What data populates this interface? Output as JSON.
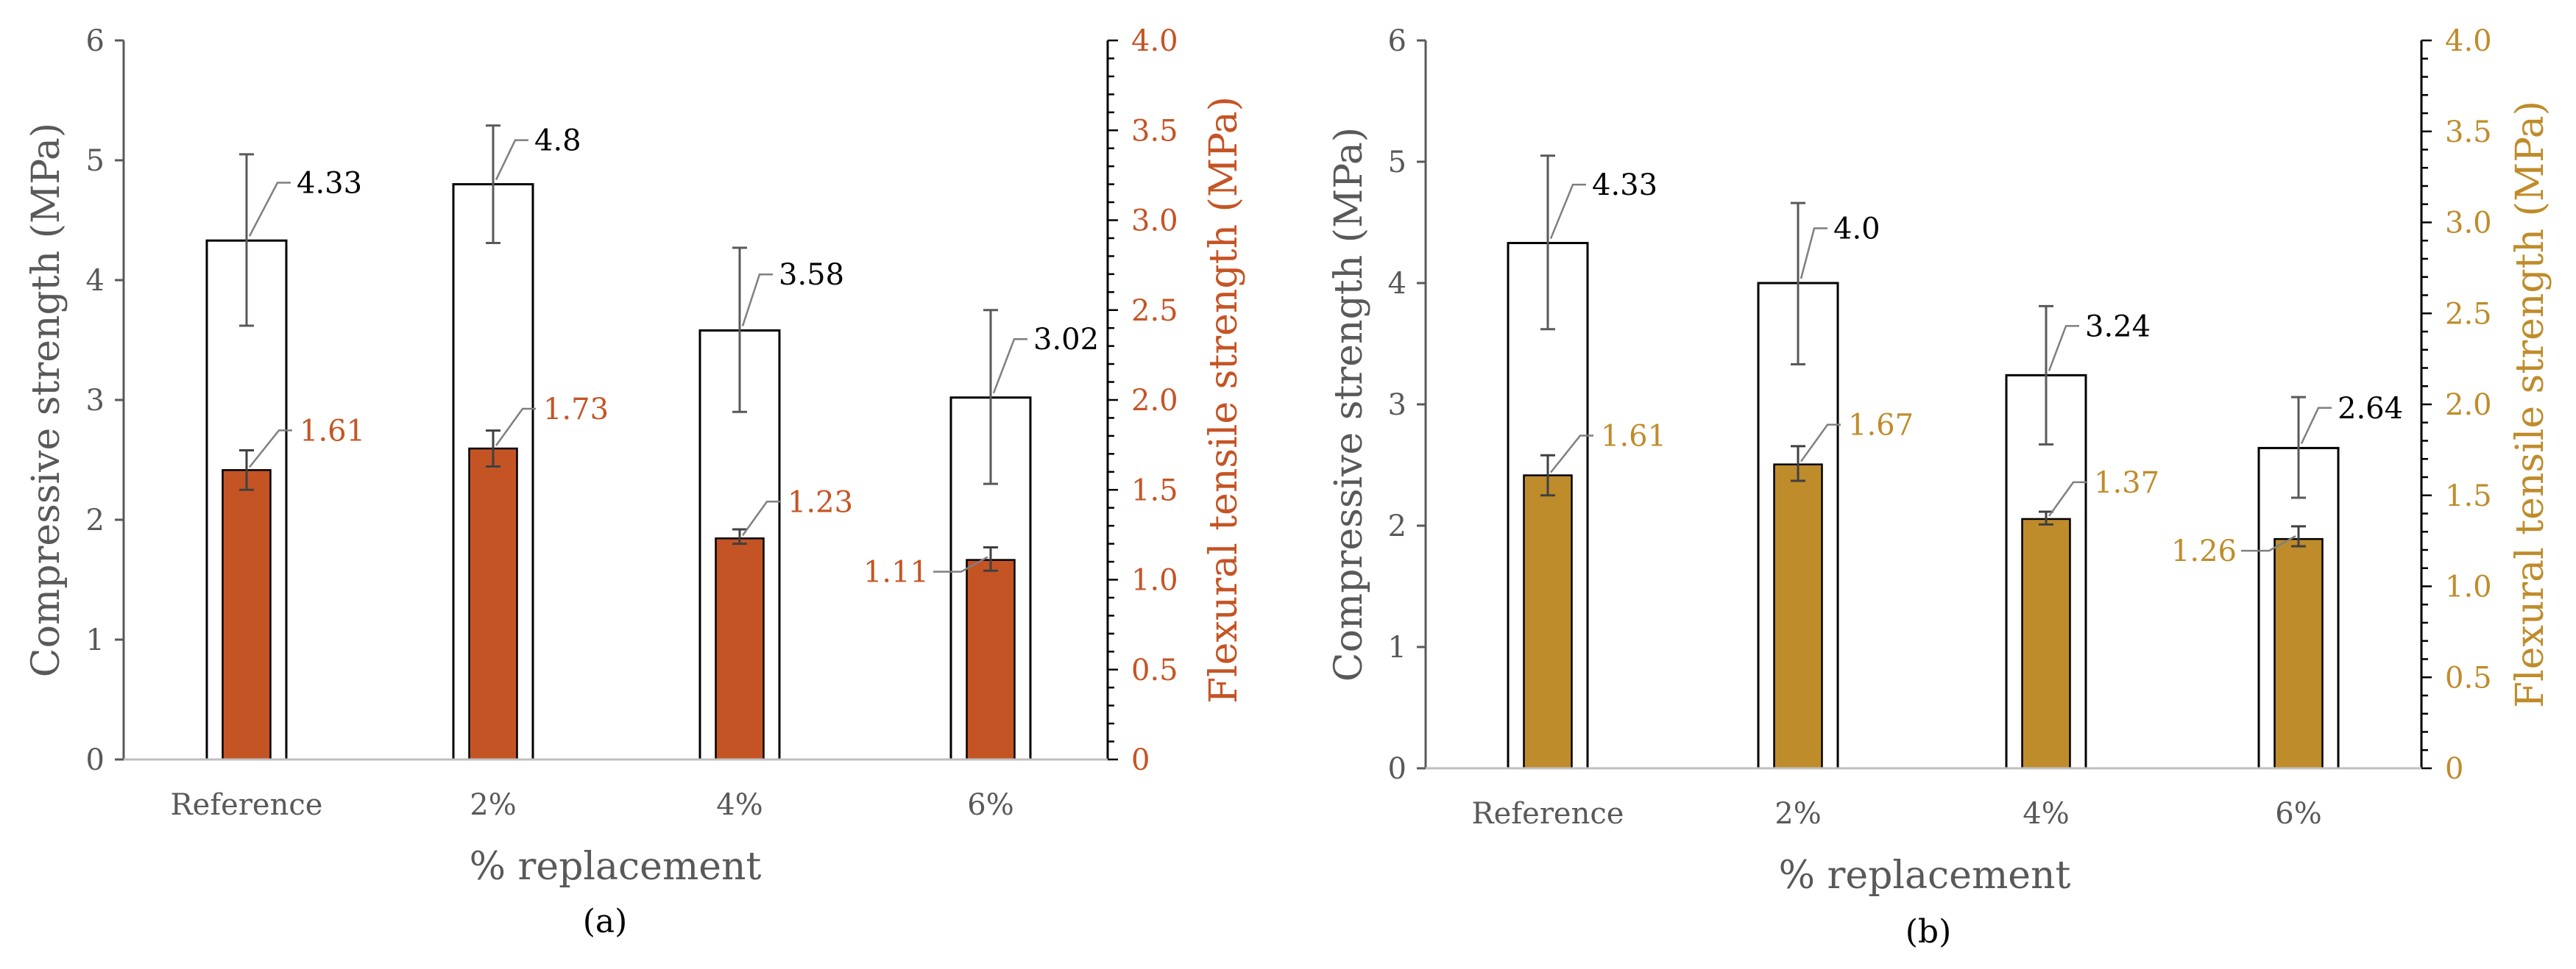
{
  "chart_data": [
    {
      "type": "bar",
      "panel_label": "(a)",
      "categories": [
        "Reference",
        "2%",
        "4%",
        "6%"
      ],
      "xlabel": "% replacement",
      "ylabel_left": "Compressive strength (MPa)",
      "ylabel_right": "Flexural tensile strength (MPa)",
      "ylim_left": [
        0,
        6
      ],
      "yticks_left": [
        "0",
        "1",
        "2",
        "3",
        "4",
        "5",
        "6"
      ],
      "ylim_right": [
        0,
        4
      ],
      "yticks_right": [
        "0",
        "0.5",
        "1.0",
        "1.5",
        "2.0",
        "2.5",
        "3.0",
        "3.5",
        "4.0"
      ],
      "accent_color": "#c55425",
      "series": [
        {
          "name": "Compressive strength",
          "axis": "left",
          "values": [
            4.33,
            4.8,
            3.58,
            3.02
          ],
          "labels": [
            "4.33",
            "4.8",
            "3.58",
            "3.02"
          ],
          "err_low": [
            3.62,
            4.31,
            2.9,
            2.3
          ],
          "err_high": [
            5.05,
            5.29,
            4.27,
            3.75
          ]
        },
        {
          "name": "Flexural tensile strength",
          "axis": "right",
          "values": [
            1.61,
            1.73,
            1.23,
            1.11
          ],
          "labels": [
            "1.61",
            "1.73",
            "1.23",
            "1.11"
          ],
          "err_low": [
            1.5,
            1.63,
            1.2,
            1.05
          ],
          "err_high": [
            1.72,
            1.83,
            1.28,
            1.18
          ]
        }
      ]
    },
    {
      "type": "bar",
      "panel_label": "(b)",
      "categories": [
        "Reference",
        "2%",
        "4%",
        "6%"
      ],
      "xlabel": "% replacement",
      "ylabel_left": "Compressive strength (MPa)",
      "ylabel_right": "Flexural tensile strength (MPa)",
      "ylim_left": [
        0,
        6
      ],
      "yticks_left": [
        "0",
        "1",
        "2",
        "3",
        "4",
        "5",
        "6"
      ],
      "ylim_right": [
        0,
        4
      ],
      "yticks_right": [
        "0",
        "0.5",
        "1.0",
        "1.5",
        "2.0",
        "2.5",
        "3.0",
        "3.5",
        "4.0"
      ],
      "accent_color": "#bf8c2b",
      "series": [
        {
          "name": "Compressive strength",
          "axis": "left",
          "values": [
            4.33,
            4.0,
            3.24,
            2.64
          ],
          "labels": [
            "4.33",
            "4.0",
            "3.24",
            "2.64"
          ],
          "err_low": [
            3.62,
            3.33,
            2.67,
            2.23
          ],
          "err_high": [
            5.05,
            4.66,
            3.81,
            3.06
          ]
        },
        {
          "name": "Flexural tensile strength",
          "axis": "right",
          "values": [
            1.61,
            1.67,
            1.37,
            1.26
          ],
          "labels": [
            "1.61",
            "1.67",
            "1.37",
            "1.26"
          ],
          "err_low": [
            1.5,
            1.58,
            1.34,
            1.22
          ],
          "err_high": [
            1.72,
            1.77,
            1.41,
            1.33
          ]
        }
      ]
    }
  ]
}
